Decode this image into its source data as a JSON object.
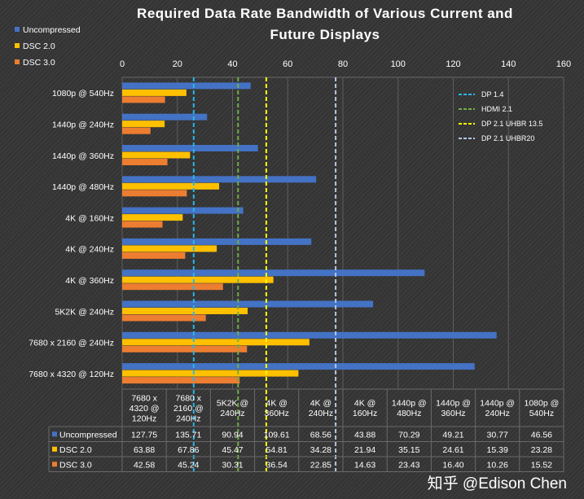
{
  "chart_data": {
    "type": "bar",
    "orientation": "horizontal",
    "title_lines": [
      "Required Data Rate Bandwidth of Various Current and",
      "Future Displays"
    ],
    "categories": [
      "1080p @ 540Hz",
      "1440p @ 240Hz",
      "1440p @ 360Hz",
      "1440p @ 480Hz",
      "4K @ 160Hz",
      "4K @ 240Hz",
      "4K @ 360Hz",
      "5K2K @ 240Hz",
      "7680 x 2160 @ 240Hz",
      "7680 x 4320 @ 120Hz"
    ],
    "series": [
      {
        "name": "Uncompressed",
        "color": "#4472c4",
        "values": [
          46.56,
          30.77,
          49.21,
          70.29,
          43.88,
          68.56,
          109.61,
          90.94,
          135.71,
          127.75
        ]
      },
      {
        "name": "DSC 2.0",
        "color": "#ffc000",
        "values": [
          23.28,
          15.39,
          24.61,
          35.15,
          21.94,
          34.28,
          54.81,
          45.47,
          67.86,
          63.88
        ]
      },
      {
        "name": "DSC 3.0",
        "color": "#ed7d31",
        "values": [
          15.52,
          10.26,
          16.4,
          23.43,
          14.63,
          22.85,
          36.54,
          30.31,
          45.24,
          42.58
        ]
      }
    ],
    "xlim": [
      0,
      160
    ],
    "xticks": [
      0,
      20,
      40,
      60,
      80,
      100,
      120,
      140,
      160
    ],
    "x_axis_position": "top",
    "reference_lines": [
      {
        "name": "DP 1.4",
        "value": 25.92,
        "color": "#29b6e8"
      },
      {
        "name": "HDMI 2.1",
        "value": 42.0,
        "color": "#70ad47"
      },
      {
        "name": "DP 2.1 UHBR 13.5",
        "value": 52.22,
        "color": "#ffff00"
      },
      {
        "name": "DP 2.1 UHBR20",
        "value": 77.37,
        "color": "#b4c7e7"
      }
    ],
    "legend_position": "top-left",
    "reference_legend_position": "top-right",
    "table": {
      "columns": [
        "7680 x\n4320 @\n120Hz",
        "7680 x\n2160 @\n240Hz",
        "5K2K @\n240Hz",
        "4K @\n360Hz",
        "4K @\n240Hz",
        "4K @\n160Hz",
        "1440p @\n480Hz",
        "1440p @\n360Hz",
        "1440p @\n240Hz",
        "1080p @\n540Hz"
      ],
      "rows": [
        {
          "name": "Uncompressed",
          "color": "#4472c4",
          "cells": [
            "127.75",
            "135.71",
            "90.94",
            "109.61",
            "68.56",
            "43.88",
            "70.29",
            "49.21",
            "30.77",
            "46.56"
          ]
        },
        {
          "name": "DSC 2.0",
          "color": "#ffc000",
          "cells": [
            "63.88",
            "67.86",
            "45.47",
            "54.81",
            "34.28",
            "21.94",
            "35.15",
            "24.61",
            "15.39",
            "23.28"
          ]
        },
        {
          "name": "DSC 3.0",
          "color": "#ed7d31",
          "cells": [
            "42.58",
            "45.24",
            "30.31",
            "36.54",
            "22.85",
            "14.63",
            "23.43",
            "16.40",
            "10.26",
            "15.52"
          ]
        }
      ]
    }
  },
  "watermark": "知乎 @Edison Chen"
}
